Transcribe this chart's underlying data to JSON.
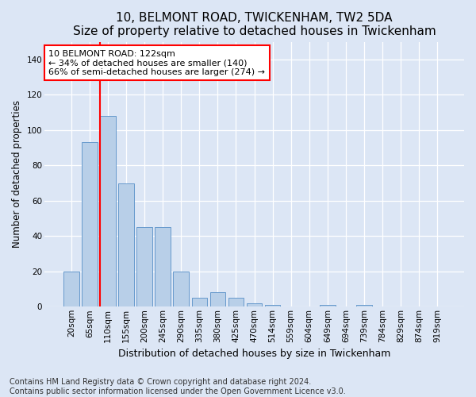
{
  "title": "10, BELMONT ROAD, TWICKENHAM, TW2 5DA",
  "subtitle": "Size of property relative to detached houses in Twickenham",
  "xlabel": "Distribution of detached houses by size in Twickenham",
  "ylabel": "Number of detached properties",
  "bar_labels": [
    "20sqm",
    "65sqm",
    "110sqm",
    "155sqm",
    "200sqm",
    "245sqm",
    "290sqm",
    "335sqm",
    "380sqm",
    "425sqm",
    "470sqm",
    "514sqm",
    "559sqm",
    "604sqm",
    "649sqm",
    "694sqm",
    "739sqm",
    "784sqm",
    "829sqm",
    "874sqm",
    "919sqm"
  ],
  "bar_values": [
    20,
    93,
    108,
    70,
    45,
    45,
    20,
    5,
    8,
    5,
    2,
    1,
    0,
    0,
    1,
    0,
    1,
    0,
    0,
    0,
    0
  ],
  "bar_color": "#b8cfe8",
  "bar_edge_color": "#6699cc",
  "vline_color": "red",
  "vline_bar_index": 2,
  "annotation_text": "10 BELMONT ROAD: 122sqm\n← 34% of detached houses are smaller (140)\n66% of semi-detached houses are larger (274) →",
  "annotation_box_color": "white",
  "annotation_box_edge": "red",
  "ylim": [
    0,
    150
  ],
  "yticks": [
    0,
    20,
    40,
    60,
    80,
    100,
    120,
    140
  ],
  "bg_color": "#dce6f5",
  "plot_bg_color": "#dce6f5",
  "footer": "Contains HM Land Registry data © Crown copyright and database right 2024.\nContains public sector information licensed under the Open Government Licence v3.0.",
  "title_fontsize": 11,
  "subtitle_fontsize": 9.5,
  "xlabel_fontsize": 9,
  "ylabel_fontsize": 8.5,
  "tick_fontsize": 7.5,
  "footer_fontsize": 7
}
